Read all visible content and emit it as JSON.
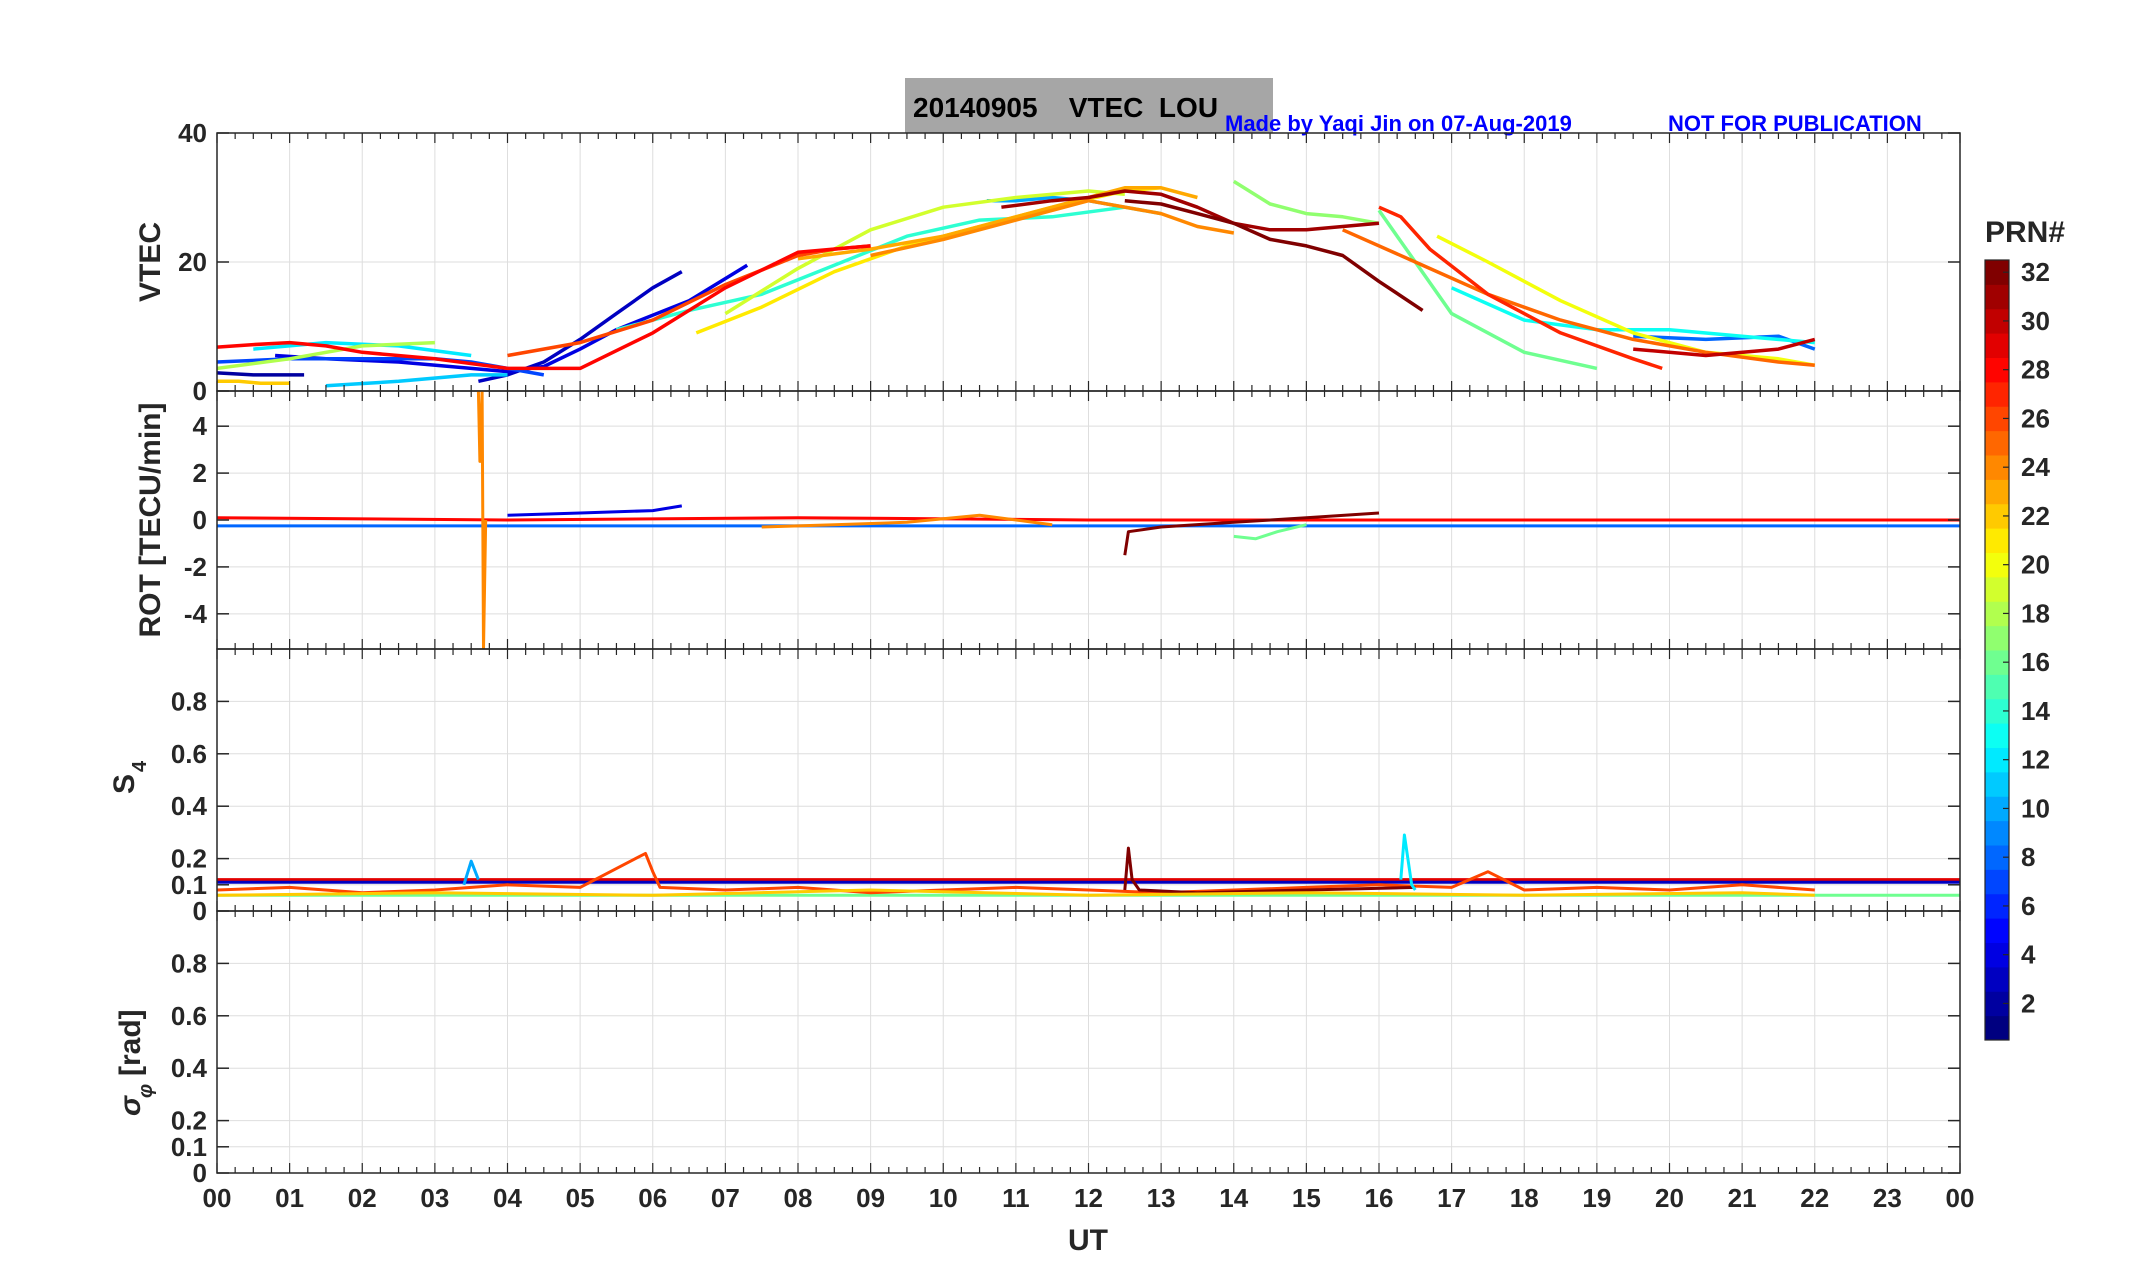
{
  "title": "20140905    VTEC  LOU",
  "credit": "Made by Yaqi Jin on 07-Aug-2019",
  "notice": "NOT FOR PUBLICATION",
  "xlabel": "UT",
  "colorbar": {
    "title": "PRN#",
    "range": [
      1,
      32
    ],
    "ticks": [
      "2",
      "4",
      "6",
      "8",
      "10",
      "12",
      "14",
      "16",
      "18",
      "20",
      "22",
      "24",
      "26",
      "28",
      "30",
      "32"
    ]
  },
  "colors": {
    "title_box": "#a6a6a6",
    "credit": "#0000ff",
    "axis": "#262626",
    "grid": "#dedede"
  },
  "chart_data": [
    {
      "id": "vtec",
      "type": "line",
      "ylabel": "VTEC",
      "xlim": [
        0,
        24
      ],
      "ylim": [
        0,
        40
      ],
      "yticks": [
        "0",
        "20",
        "40"
      ],
      "xticks": [
        "00",
        "01",
        "02",
        "03",
        "04",
        "05",
        "06",
        "07",
        "08",
        "09",
        "10",
        "11",
        "12",
        "13",
        "14",
        "15",
        "16",
        "17",
        "18",
        "19",
        "20",
        "21",
        "22",
        "23",
        "00"
      ],
      "series": [
        {
          "prn": 2,
          "x": [
            0.0,
            0.5,
            1.2
          ],
          "y": [
            2.8,
            2.5,
            2.5
          ]
        },
        {
          "prn": 3,
          "x": [
            3.6,
            4.0,
            4.5,
            5.0,
            5.5,
            6.0,
            6.4
          ],
          "y": [
            1.5,
            2.5,
            4.5,
            8.0,
            12.0,
            16.0,
            18.5
          ]
        },
        {
          "prn": 4,
          "x": [
            0.8,
            1.5,
            2.5,
            3.5,
            4.0,
            4.5,
            5.0,
            5.5,
            6.5,
            7.3
          ],
          "y": [
            5.5,
            5.0,
            4.5,
            3.5,
            3.0,
            3.8,
            6.5,
            9.5,
            14.0,
            19.5
          ]
        },
        {
          "prn": 7,
          "x": [
            0.0,
            1.0,
            2.0,
            3.0,
            3.5,
            4.0,
            4.5
          ],
          "y": [
            4.5,
            5.0,
            5.0,
            5.0,
            4.5,
            3.5,
            2.5
          ]
        },
        {
          "prn": 8,
          "x": [
            19.5,
            20.5,
            21.5,
            22.0
          ],
          "y": [
            8.5,
            8.0,
            8.5,
            6.5
          ]
        },
        {
          "prn": 10,
          "x": [
            10.6,
            11.0,
            11.5,
            12.0,
            12.5
          ],
          "y": [
            29.5,
            29.5,
            30.0,
            29.5,
            28.5
          ]
        },
        {
          "prn": 11,
          "x": [
            1.5,
            2.5,
            3.5,
            4.0
          ],
          "y": [
            0.8,
            1.5,
            2.5,
            2.5
          ]
        },
        {
          "prn": 12,
          "x": [
            0.5,
            1.5,
            2.5,
            3.5
          ],
          "y": [
            6.5,
            7.5,
            7.0,
            5.5
          ]
        },
        {
          "prn": 13,
          "x": [
            17.0,
            18.0,
            19.0,
            20.0,
            21.0,
            22.0
          ],
          "y": [
            16.0,
            11.0,
            9.5,
            9.5,
            8.5,
            7.5
          ]
        },
        {
          "prn": 14,
          "x": [
            5.5,
            6.5,
            7.5,
            8.5,
            9.5,
            10.5,
            11.5,
            12.5,
            13.0
          ],
          "y": [
            9.5,
            12.5,
            15.0,
            19.5,
            24.0,
            26.5,
            27.0,
            28.5,
            27.5
          ]
        },
        {
          "prn": 16,
          "x": [
            16.0,
            16.5,
            17.0,
            18.0,
            19.0
          ],
          "y": [
            28.0,
            20.0,
            12.0,
            6.0,
            3.5
          ]
        },
        {
          "prn": 17,
          "x": [
            14.0,
            14.5,
            15.0,
            15.5,
            16.0
          ],
          "y": [
            32.5,
            29.0,
            27.5,
            27.0,
            26.0
          ]
        },
        {
          "prn": 18,
          "x": [
            0.0,
            1.0,
            2.0,
            3.0
          ],
          "y": [
            3.5,
            5.0,
            7.0,
            7.5
          ]
        },
        {
          "prn": 19,
          "x": [
            7.0,
            8.0,
            9.0,
            10.0,
            11.0,
            12.0,
            12.5
          ],
          "y": [
            12.0,
            19.0,
            25.0,
            28.5,
            30.0,
            31.0,
            30.5
          ]
        },
        {
          "prn": 20,
          "x": [
            16.8,
            17.5,
            18.5,
            19.5,
            20.5,
            21.5,
            22.0
          ],
          "y": [
            24.0,
            20.0,
            14.0,
            9.0,
            6.0,
            5.0,
            4.0
          ]
        },
        {
          "prn": 21,
          "x": [
            6.6,
            7.5,
            8.5,
            9.5,
            10.5,
            11.5,
            12.5,
            13.0
          ],
          "y": [
            9.0,
            13.0,
            18.5,
            22.5,
            25.5,
            28.5,
            31.0,
            31.5
          ]
        },
        {
          "prn": 22,
          "x": [
            0.0,
            0.3,
            0.6,
            1.0
          ],
          "y": [
            1.5,
            1.5,
            1.2,
            1.2
          ]
        },
        {
          "prn": 23,
          "x": [
            8.0,
            9.0,
            10.0,
            11.0,
            12.0,
            12.5,
            13.0,
            13.5
          ],
          "y": [
            20.5,
            22.0,
            24.0,
            27.0,
            30.0,
            31.5,
            31.5,
            30.0
          ]
        },
        {
          "prn": 24,
          "x": [
            9.0,
            10.0,
            11.0,
            12.0,
            13.0,
            13.5,
            14.0
          ],
          "y": [
            21.0,
            23.5,
            26.5,
            29.5,
            27.5,
            25.5,
            24.5
          ]
        },
        {
          "prn": 25,
          "x": [
            15.5,
            16.5,
            17.5,
            18.5,
            19.5,
            20.5,
            21.5,
            22.0
          ],
          "y": [
            25.0,
            20.0,
            15.0,
            11.0,
            8.0,
            6.0,
            4.5,
            4.0
          ]
        },
        {
          "prn": 26,
          "x": [
            4.0,
            5.0,
            6.0,
            7.0,
            8.0,
            8.5,
            9.0
          ],
          "y": [
            5.5,
            7.5,
            11.0,
            16.5,
            21.0,
            22.0,
            22.5
          ]
        },
        {
          "prn": 27,
          "x": [
            16.0,
            16.3,
            16.7,
            17.5,
            18.5,
            19.5,
            19.9
          ],
          "y": [
            28.5,
            27.0,
            22.0,
            15.0,
            9.0,
            5.0,
            3.5
          ]
        },
        {
          "prn": 28,
          "x": [
            0.0,
            0.5,
            1.0,
            1.5,
            2.0,
            3.0,
            4.0,
            5.0,
            6.0,
            7.0,
            8.0,
            9.0
          ],
          "y": [
            6.8,
            7.2,
            7.5,
            7.0,
            6.0,
            5.0,
            3.5,
            3.5,
            9.0,
            16.0,
            21.5,
            22.5
          ]
        },
        {
          "prn": 30,
          "x": [
            19.5,
            20.5,
            21.5,
            22.0
          ],
          "y": [
            6.5,
            5.5,
            6.5,
            8.0
          ]
        },
        {
          "prn": 31,
          "x": [
            10.8,
            11.5,
            12.0,
            12.5,
            13.0,
            13.5,
            14.0,
            14.5,
            15.0,
            16.0
          ],
          "y": [
            28.5,
            29.5,
            30.0,
            31.0,
            30.5,
            28.5,
            26.0,
            25.0,
            25.0,
            26.0
          ]
        },
        {
          "prn": 32,
          "x": [
            12.5,
            13.0,
            13.5,
            14.0,
            14.5,
            15.0,
            15.5,
            16.0,
            16.6
          ],
          "y": [
            29.5,
            29.0,
            27.5,
            26.0,
            23.5,
            22.5,
            21.0,
            17.0,
            12.5
          ]
        }
      ]
    },
    {
      "id": "rot",
      "type": "line",
      "ylabel": "ROT [TECU/min]",
      "xlim": [
        0,
        24
      ],
      "ylim": [
        -5.5,
        5.5
      ],
      "yticks": [
        "4",
        "2",
        "0",
        "-2",
        "-4"
      ],
      "ytick_values": [
        4,
        2,
        0,
        -2,
        -4
      ],
      "series": [
        {
          "prn": 28,
          "x": [
            0.0,
            4.0,
            8.0,
            12.0,
            16.0,
            20.0,
            24.0
          ],
          "y": [
            0.1,
            0.0,
            0.1,
            0.0,
            0.0,
            0.0,
            0.0
          ]
        },
        {
          "prn": 8,
          "x": [
            0.0,
            24.0
          ],
          "y": [
            -0.25,
            -0.25
          ]
        },
        {
          "prn": 24,
          "x": [
            3.6,
            3.62,
            3.65,
            3.67,
            3.7
          ],
          "y": [
            5.5,
            2.5,
            5.5,
            -5.5,
            0.0
          ]
        },
        {
          "prn": 32,
          "x": [
            12.5,
            12.55,
            13.0,
            14.0,
            15.0,
            16.0
          ],
          "y": [
            -1.5,
            -0.5,
            -0.3,
            -0.1,
            0.1,
            0.3
          ]
        },
        {
          "prn": 16,
          "x": [
            14.0,
            14.3,
            14.6,
            15.0
          ],
          "y": [
            -0.7,
            -0.8,
            -0.5,
            -0.2
          ]
        },
        {
          "prn": 24,
          "x": [
            7.5,
            8.5,
            9.5,
            10.5,
            11.5
          ],
          "y": [
            -0.3,
            -0.2,
            -0.1,
            0.2,
            -0.2
          ]
        },
        {
          "prn": 4,
          "x": [
            4.0,
            5.0,
            6.0,
            6.4
          ],
          "y": [
            0.2,
            0.3,
            0.4,
            0.6
          ]
        }
      ]
    },
    {
      "id": "s4",
      "type": "line",
      "ylabel": "S4",
      "xlim": [
        0,
        24
      ],
      "ylim": [
        0,
        1
      ],
      "yticks": [
        "0",
        "0.1",
        "0.2",
        "0.4",
        "0.6",
        "0.8"
      ],
      "ytick_values": [
        0,
        0.1,
        0.2,
        0.4,
        0.6,
        0.8
      ],
      "series": [
        {
          "prn": 29,
          "x": [
            0.0,
            24.0
          ],
          "y": [
            0.12,
            0.12
          ]
        },
        {
          "prn": 3,
          "x": [
            0.0,
            24.0
          ],
          "y": [
            0.11,
            0.11
          ]
        },
        {
          "prn": 16,
          "x": [
            0.0,
            24.0
          ],
          "y": [
            0.06,
            0.06
          ]
        },
        {
          "prn": 26,
          "x": [
            0.0,
            1.0,
            2.0,
            3.0,
            4.0,
            5.0,
            5.9,
            6.0,
            6.1,
            7.0,
            8.0,
            9.0,
            10.0,
            11.0,
            12.0,
            13.0,
            14.0,
            15.0,
            16.0,
            17.0,
            17.5,
            18.0,
            19.0,
            20.0,
            21.0,
            22.0
          ],
          "y": [
            0.08,
            0.09,
            0.07,
            0.08,
            0.1,
            0.09,
            0.22,
            0.15,
            0.09,
            0.08,
            0.09,
            0.07,
            0.08,
            0.09,
            0.08,
            0.07,
            0.08,
            0.09,
            0.1,
            0.09,
            0.15,
            0.08,
            0.09,
            0.08,
            0.1,
            0.08
          ]
        },
        {
          "prn": 32,
          "x": [
            12.5,
            12.55,
            12.6,
            12.7,
            13.5,
            15.0,
            16.5
          ],
          "y": [
            0.08,
            0.24,
            0.12,
            0.08,
            0.07,
            0.08,
            0.09
          ]
        },
        {
          "prn": 12,
          "x": [
            16.3,
            16.35,
            16.45,
            16.5
          ],
          "y": [
            0.12,
            0.29,
            0.1,
            0.08
          ]
        },
        {
          "prn": 22,
          "x": [
            0.0,
            3.0,
            6.0,
            9.0,
            12.0,
            15.0,
            18.0,
            21.0,
            22.0
          ],
          "y": [
            0.06,
            0.07,
            0.06,
            0.08,
            0.06,
            0.07,
            0.06,
            0.07,
            0.06
          ]
        },
        {
          "prn": 10,
          "x": [
            3.4,
            3.5,
            3.6
          ],
          "y": [
            0.1,
            0.19,
            0.12
          ]
        }
      ]
    },
    {
      "id": "sigma",
      "type": "line",
      "ylabel": "σφ [rad]",
      "xlim": [
        0,
        24
      ],
      "ylim": [
        0,
        1
      ],
      "yticks": [
        "0",
        "0.1",
        "0.2",
        "0.4",
        "0.6",
        "0.8"
      ],
      "ytick_values": [
        0,
        0.1,
        0.2,
        0.4,
        0.6,
        0.8
      ],
      "series": []
    }
  ]
}
